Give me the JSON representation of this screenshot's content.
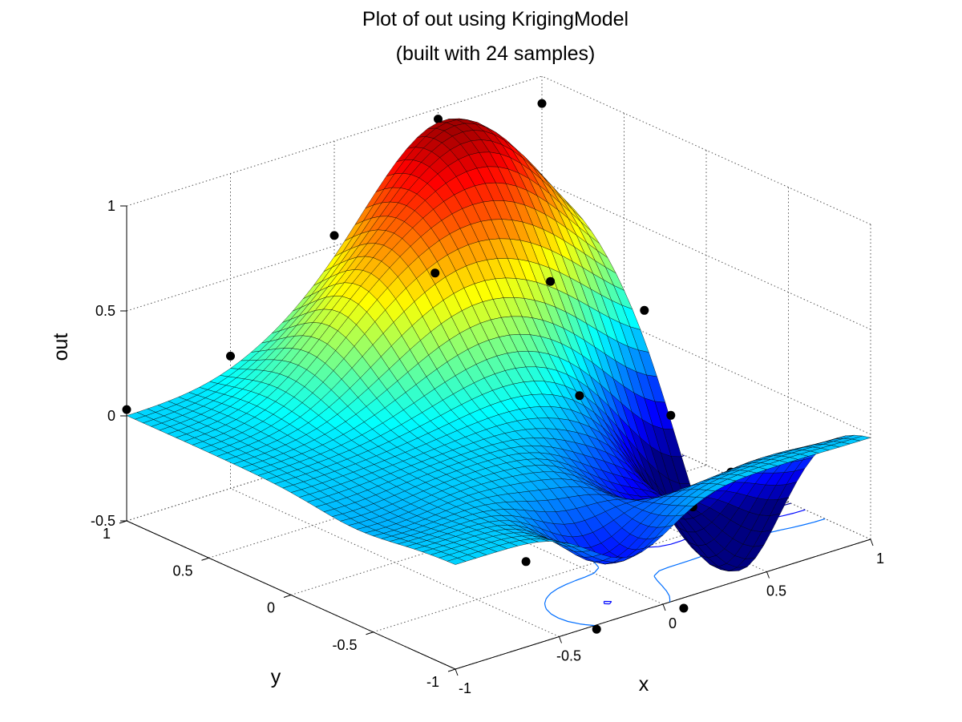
{
  "chart_data": {
    "type": "surface",
    "title": [
      "Plot of out using KrigingModel",
      "(built with 24 samples)"
    ],
    "xlabel": "x",
    "ylabel": "y",
    "zlabel": "out",
    "xlim": [
      -1,
      1
    ],
    "ylim": [
      -1,
      1
    ],
    "zlim": [
      -0.5,
      1
    ],
    "x_ticks": [
      -1,
      -0.5,
      0,
      0.5,
      1
    ],
    "x_tick_labels": [
      "-1",
      "-0.5",
      "0",
      "0.5",
      "1"
    ],
    "y_ticks": [
      -1,
      -0.5,
      0,
      0.5,
      1
    ],
    "y_tick_labels": [
      "-1",
      "-0.5",
      "0",
      "0.5",
      "1"
    ],
    "z_ticks": [
      -0.5,
      0,
      0.5,
      1
    ],
    "z_tick_labels": [
      "-0.5",
      "0",
      "0.5",
      "1"
    ],
    "grid": true,
    "colormap": "jet",
    "grid_resolution": 41,
    "surface_bumps": [
      {
        "center": [
          0.55,
          0.95
        ],
        "height": 0.92,
        "width": 0.55
      },
      {
        "center": [
          0.1,
          0.55
        ],
        "height": 0.28,
        "width": 0.4
      },
      {
        "center": [
          -0.25,
          0.65
        ],
        "height": 0.18,
        "width": 0.35
      },
      {
        "center": [
          1.0,
          -0.15
        ],
        "height": -0.95,
        "width": 0.42
      },
      {
        "center": [
          0.35,
          -0.45
        ],
        "height": -0.28,
        "width": 0.3
      },
      {
        "center": [
          -0.15,
          -0.85
        ],
        "height": -0.3,
        "width": 0.28
      },
      {
        "center": [
          -0.9,
          -0.4
        ],
        "height": -0.05,
        "width": 0.35
      }
    ],
    "samples": [
      [
        -1.0,
        1.0,
        0.03
      ],
      [
        -0.5,
        1.0,
        0.13
      ],
      [
        0.0,
        1.0,
        0.55
      ],
      [
        0.5,
        1.0,
        0.95
      ],
      [
        1.0,
        1.0,
        0.87
      ],
      [
        -0.58,
        0.7,
        -0.02
      ],
      [
        -0.15,
        0.62,
        0.28
      ],
      [
        0.05,
        0.45,
        0.55
      ],
      [
        0.55,
        0.38,
        0.38
      ],
      [
        0.9,
        0.25,
        0.18
      ],
      [
        -0.42,
        0.3,
        0.02
      ],
      [
        0.05,
        0.05,
        -0.02
      ],
      [
        0.35,
        -0.05,
        0.05
      ],
      [
        0.75,
        -0.1,
        -0.15
      ],
      [
        1.0,
        -0.15,
        -0.48
      ],
      [
        1.0,
        0.5,
        -0.12
      ],
      [
        1.0,
        1.0,
        -0.14
      ],
      [
        -0.6,
        -0.15,
        -0.2
      ],
      [
        -0.28,
        -0.52,
        -0.38
      ],
      [
        0.12,
        -0.62,
        -0.3
      ],
      [
        -0.2,
        -0.32,
        -0.22
      ],
      [
        0.5,
        -0.55,
        -0.35
      ],
      [
        -0.28,
        -0.95,
        -0.55
      ],
      [
        0.1,
        -1.0,
        -0.55
      ]
    ],
    "contour_levels": [
      -0.55,
      -0.45,
      -0.3,
      -0.15
    ],
    "surface_edge_color": "#000000",
    "sample_marker_color": "#000000"
  }
}
